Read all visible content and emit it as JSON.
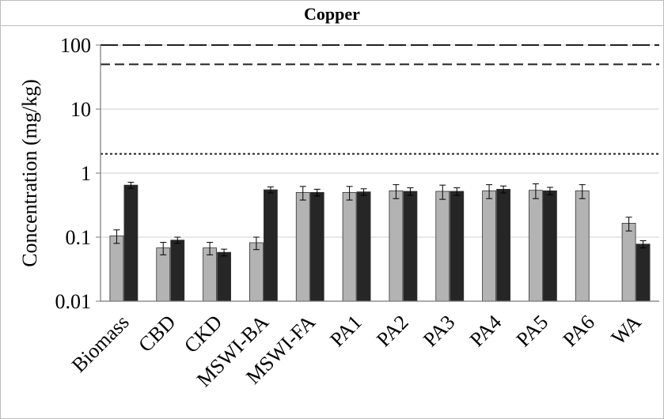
{
  "chart_data": {
    "type": "bar",
    "title": "Copper",
    "ylabel": "Concentration (mg/kg)",
    "xlabel": "",
    "yscale": "log",
    "ylim": [
      0.01,
      100
    ],
    "yticks": [
      "0.01",
      "0.1",
      "1",
      "10",
      "100"
    ],
    "grid": true,
    "categories": [
      "Biomass",
      "CBD",
      "CKD",
      "MSWI-BA",
      "MSWI-FA",
      "PA1",
      "PA2",
      "PA3",
      "PA4",
      "PA5",
      "PA6",
      "WA"
    ],
    "series": [
      {
        "color": "#b3b3b3",
        "values": [
          0.105,
          0.068,
          0.068,
          0.082,
          0.5,
          0.5,
          0.53,
          0.52,
          0.53,
          0.54,
          0.53,
          0.165
        ],
        "errors": [
          0.025,
          0.015,
          0.015,
          0.018,
          0.12,
          0.12,
          0.13,
          0.13,
          0.13,
          0.14,
          0.13,
          0.04
        ]
      },
      {
        "color": "#262626",
        "values": [
          0.65,
          0.09,
          0.058,
          0.55,
          0.5,
          0.51,
          0.52,
          0.52,
          0.56,
          0.53,
          null,
          0.078
        ],
        "errors": [
          0.07,
          0.01,
          0.007,
          0.06,
          0.06,
          0.06,
          0.07,
          0.07,
          0.07,
          0.07,
          null,
          0.01
        ]
      }
    ],
    "reference_lines": [
      {
        "value": 100,
        "style": "long-dash"
      },
      {
        "value": 50,
        "style": "dash"
      },
      {
        "value": 2,
        "style": "dot"
      }
    ]
  }
}
